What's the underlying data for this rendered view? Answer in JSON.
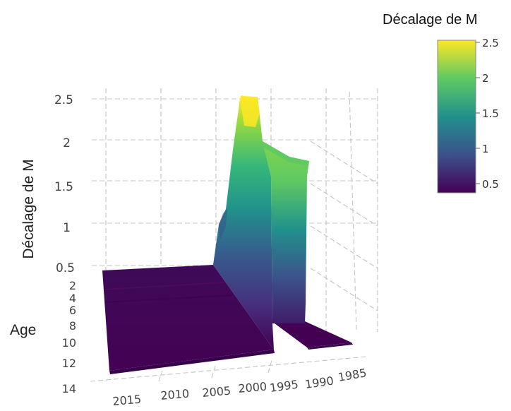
{
  "chart_data": {
    "type": "surface3d",
    "zlabel": "Décalage de M",
    "ylabel": "Age",
    "xlabel": "",
    "x_ticks": [
      "2015",
      "2010",
      "2005",
      "2000",
      "1995",
      "1990",
      "1985"
    ],
    "y_ticks": [
      "2",
      "4",
      "6",
      "8",
      "10",
      "12",
      "14"
    ],
    "z_ticks": [
      "0.5",
      "1",
      "1.5",
      "2",
      "2.5"
    ],
    "zlim": [
      0.5,
      2.5
    ],
    "grid": true,
    "legend": {
      "title": "Décalage de M",
      "position": "top-right",
      "colorscale": "viridis",
      "ticks": [
        "2.5",
        "2",
        "1.5",
        "1",
        "0.5"
      ],
      "range": [
        0.4,
        2.5
      ]
    },
    "colors": {
      "low": "#440154",
      "mid_low": "#3b528b",
      "mid": "#21918c",
      "mid_high": "#5ec962",
      "high": "#fde725"
    }
  }
}
